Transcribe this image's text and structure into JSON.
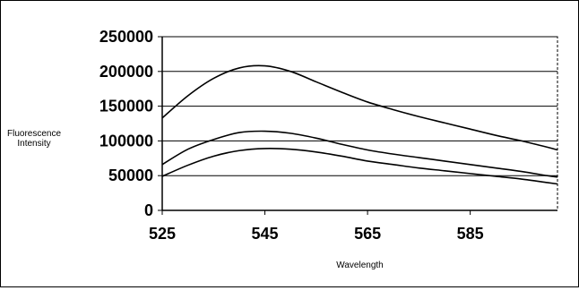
{
  "chart_data": {
    "type": "line",
    "title": "",
    "xlabel": "Wavelength",
    "ylabel": "Fluorescence Intensity",
    "ylabel_lines": [
      "Fluorescence",
      "Intensity"
    ],
    "xlim": [
      525,
      602
    ],
    "ylim": [
      0,
      250000
    ],
    "x_ticks": [
      525,
      545,
      565,
      585
    ],
    "y_ticks": [
      0,
      50000,
      100000,
      150000,
      200000,
      250000
    ],
    "grid": "horizontal",
    "legend": "none",
    "line_color": "#000000",
    "x": [
      525,
      530,
      535,
      540,
      545,
      550,
      555,
      560,
      565,
      570,
      575,
      580,
      585,
      590,
      595,
      600,
      602
    ],
    "series": [
      {
        "values": [
          133000,
          165000,
          190000,
          205000,
          208000,
          200000,
          185000,
          170000,
          156000,
          145000,
          135000,
          126000,
          117000,
          108000,
          100000,
          91000,
          87000
        ]
      },
      {
        "values": [
          66000,
          88000,
          102000,
          112000,
          114000,
          111000,
          104000,
          95000,
          87000,
          81000,
          76000,
          71000,
          66000,
          61000,
          56000,
          50000,
          48000
        ]
      },
      {
        "values": [
          49000,
          65000,
          78000,
          86000,
          89000,
          88000,
          84000,
          78000,
          71000,
          66000,
          61000,
          57000,
          53000,
          49000,
          45000,
          40000,
          38000
        ]
      }
    ]
  }
}
